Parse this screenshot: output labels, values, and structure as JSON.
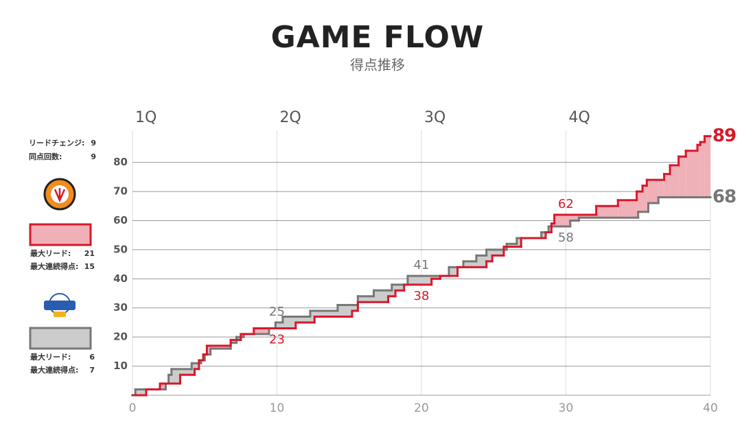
{
  "title": "GAME FLOW",
  "subtitle": "得点推移",
  "stats": [
    {
      "label": "リードチェンジ:",
      "value": 9
    },
    {
      "label": "同点回数:",
      "value": 9
    }
  ],
  "chart_data": {
    "type": "step",
    "xlim": [
      0,
      40
    ],
    "ylim": [
      0,
      91
    ],
    "xticks": [
      0,
      10,
      20,
      30,
      40
    ],
    "yticks": [
      10,
      20,
      30,
      40,
      50,
      60,
      70,
      80
    ],
    "x2ticks": [
      {
        "value": 0,
        "label": "1Q"
      },
      {
        "value": 10,
        "label": "2Q"
      },
      {
        "value": 20,
        "label": "3Q"
      },
      {
        "value": 30,
        "label": "4Q"
      }
    ],
    "grid": true,
    "series": [
      {
        "color": "#d7182a",
        "fill": "#f0b0b8",
        "x": [
          0,
          0.95,
          1.9,
          3.3,
          4.3,
          4.6,
          4.9,
          5.15,
          6.8,
          7.5,
          8.4,
          11.3,
          12.6,
          15.2,
          15.6,
          17.7,
          18.2,
          18.8,
          20.7,
          21.3,
          22.5,
          24.5,
          24.9,
          25.7,
          26.9,
          28.6,
          29.0,
          29.2,
          32.1,
          33.6,
          34.9,
          35.3,
          35.6,
          36.8,
          37.2,
          37.8,
          38.3,
          39.1,
          39.3,
          39.6
        ],
        "values": [
          0,
          2,
          4,
          7,
          9,
          12,
          14,
          17,
          19,
          21,
          23,
          25,
          27,
          29,
          32,
          34,
          36,
          38,
          40,
          41,
          44,
          46,
          48,
          51,
          54,
          56,
          59,
          62,
          65,
          67,
          70,
          72,
          74,
          76,
          79,
          82,
          84,
          86,
          87,
          89
        ],
        "label_x": [
          10,
          20,
          30,
          40
        ],
        "labels": [
          23,
          38,
          62,
          89
        ],
        "stats": [
          {
            "label": "最大リード:",
            "value": 21
          },
          {
            "label": "最大連続得点:",
            "value": 15
          }
        ]
      },
      {
        "color": "#777777",
        "fill": "#cccccc",
        "x": [
          0,
          0.2,
          2.3,
          2.5,
          2.7,
          4.1,
          4.75,
          5.0,
          5.4,
          6.8,
          7.2,
          7.7,
          9.45,
          9.9,
          10.4,
          12.3,
          14.2,
          15.6,
          16.7,
          17.95,
          19.05,
          21.9,
          22.9,
          23.8,
          24.5,
          25.9,
          26.6,
          28.3,
          28.8,
          30.3,
          30.9,
          35,
          35.7,
          36.4
        ],
        "values": [
          0,
          2,
          4,
          7,
          9,
          11,
          12,
          14,
          16,
          18,
          20,
          21,
          23,
          25,
          27,
          29,
          31,
          34,
          36,
          38,
          41,
          44,
          46,
          48,
          50,
          52,
          54,
          56,
          58,
          60,
          61,
          63,
          66,
          68
        ],
        "label_x": [
          10,
          20,
          30,
          40
        ],
        "labels": [
          25,
          41,
          58,
          68
        ],
        "stats": [
          {
            "label": "最大リード:",
            "value": 6
          },
          {
            "label": "最大連続得点:",
            "value": 7
          }
        ]
      }
    ]
  }
}
